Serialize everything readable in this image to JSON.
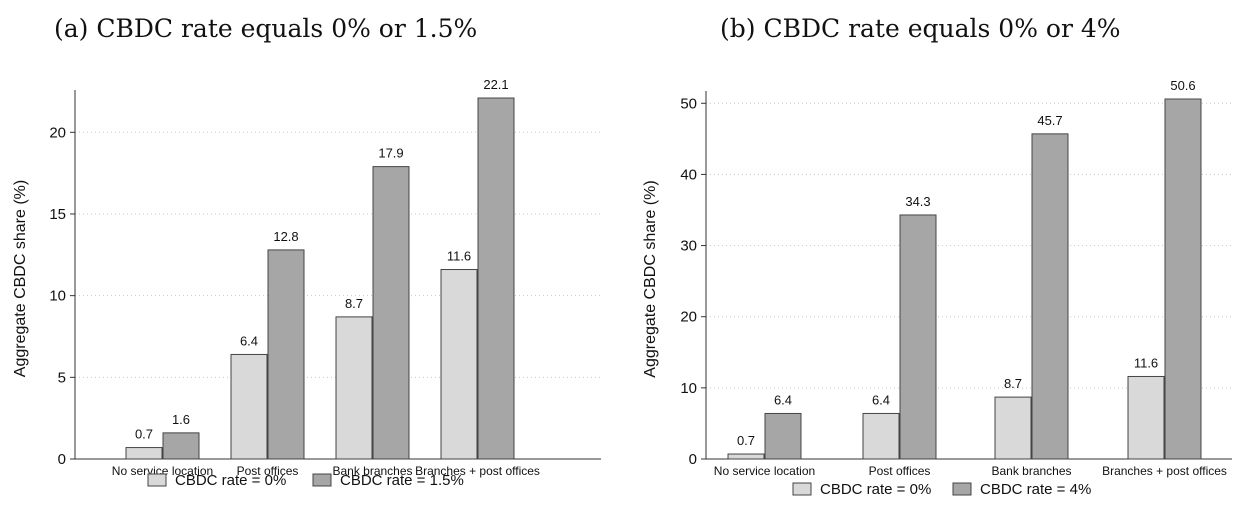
{
  "chart_data": [
    {
      "type": "bar",
      "title": "(a) CBDC rate equals 0% or 1.5%",
      "ylabel": "Aggregate CBDC share (%)",
      "xlabel": "",
      "categories": [
        "No service location",
        "Post offices",
        "Bank branches",
        "Branches + post offices"
      ],
      "series": [
        {
          "name": "CBDC rate = 0%",
          "values": [
            0.7,
            6.4,
            8.7,
            11.6
          ],
          "color": "#d9d9d9"
        },
        {
          "name": "CBDC rate = 1.5%",
          "values": [
            1.6,
            12.8,
            17.9,
            22.1
          ],
          "color": "#a6a6a6"
        }
      ],
      "data_labels": [
        [
          "0.7",
          "6.4",
          "8.7",
          "11.6"
        ],
        [
          "1.6",
          "12.8",
          "17.9",
          "22.1"
        ]
      ],
      "ylim": [
        0,
        22.1
      ],
      "yticks": [
        0,
        5,
        10,
        15,
        20
      ],
      "ytick_labels": [
        "0",
        "5",
        "10",
        "15",
        "20"
      ],
      "grid": "horizontal dotted",
      "legend_position": "bottom"
    },
    {
      "type": "bar",
      "title": "(b) CBDC rate equals 0% or 4%",
      "ylabel": "Aggregate CBDC share (%)",
      "xlabel": "",
      "categories": [
        "No service location",
        "Post offices",
        "Bank branches",
        "Branches + post offices"
      ],
      "series": [
        {
          "name": "CBDC rate = 0%",
          "values": [
            0.7,
            6.4,
            8.7,
            11.6
          ],
          "color": "#d9d9d9"
        },
        {
          "name": "CBDC rate = 4%",
          "values": [
            6.4,
            34.3,
            45.7,
            50.6
          ],
          "color": "#a6a6a6"
        }
      ],
      "data_labels": [
        [
          "0.7",
          "6.4",
          "8.7",
          "11.6"
        ],
        [
          "6.4",
          "34.3",
          "45.7",
          "50.6"
        ]
      ],
      "ylim": [
        0,
        50.6
      ],
      "yticks": [
        0,
        10,
        20,
        30,
        40,
        50
      ],
      "ytick_labels": [
        "0",
        "10",
        "20",
        "30",
        "40",
        "50"
      ],
      "grid": "horizontal dotted",
      "legend_position": "bottom"
    }
  ]
}
